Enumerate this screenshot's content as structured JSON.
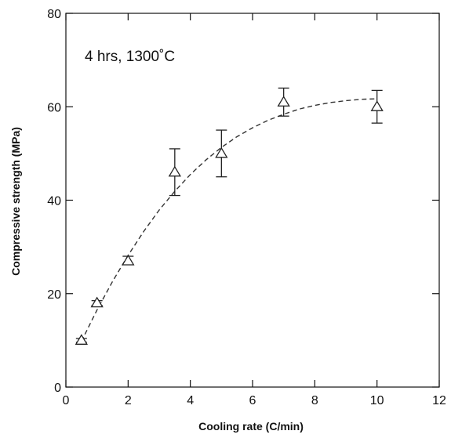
{
  "chart_data": {
    "type": "scatter",
    "title": "",
    "xlabel": "Cooling rate (C/min)",
    "ylabel": "Compressive strength (MPa)",
    "xlim": [
      0,
      12
    ],
    "ylim": [
      0,
      80
    ],
    "x_ticks": [
      0,
      2,
      4,
      6,
      8,
      10,
      12
    ],
    "y_ticks": [
      0,
      20,
      40,
      60,
      80
    ],
    "x_tick_labels": [
      "0",
      "2",
      "4",
      "6",
      "8",
      "10",
      "12"
    ],
    "y_tick_labels": [
      "0",
      "20",
      "40",
      "60",
      "80"
    ],
    "annotation": "4 hrs, 1300˚C",
    "grid": false,
    "series": [
      {
        "marker": "open-triangle",
        "color": "#222222",
        "points": [
          {
            "x": 0.5,
            "y": 10,
            "err_low": 9.6,
            "err_high": 10.4
          },
          {
            "x": 1,
            "y": 18,
            "err_low": 17.5,
            "err_high": 18.5
          },
          {
            "x": 2,
            "y": 27,
            "err_low": 26.3,
            "err_high": 28
          },
          {
            "x": 3.5,
            "y": 46,
            "err_low": 41,
            "err_high": 51
          },
          {
            "x": 5,
            "y": 50,
            "err_low": 45,
            "err_high": 55
          },
          {
            "x": 7,
            "y": 61,
            "err_low": 58,
            "err_high": 64
          },
          {
            "x": 10,
            "y": 60,
            "err_low": 56.5,
            "err_high": 63.5
          }
        ]
      }
    ],
    "fit_curve": {
      "style": "dashed",
      "color": "#333333",
      "x": [
        0.5,
        1,
        1.5,
        2,
        2.5,
        3,
        3.5,
        4,
        4.5,
        5,
        5.5,
        6,
        6.5,
        7,
        7.5,
        8,
        8.5,
        9,
        9.5,
        10
      ],
      "y": [
        9.8,
        16.5,
        22.6,
        28.2,
        33.3,
        37.9,
        41.9,
        45.5,
        48.6,
        51.3,
        53.6,
        55.5,
        57.1,
        58.4,
        59.5,
        60.3,
        60.9,
        61.3,
        61.6,
        61.7
      ]
    }
  }
}
